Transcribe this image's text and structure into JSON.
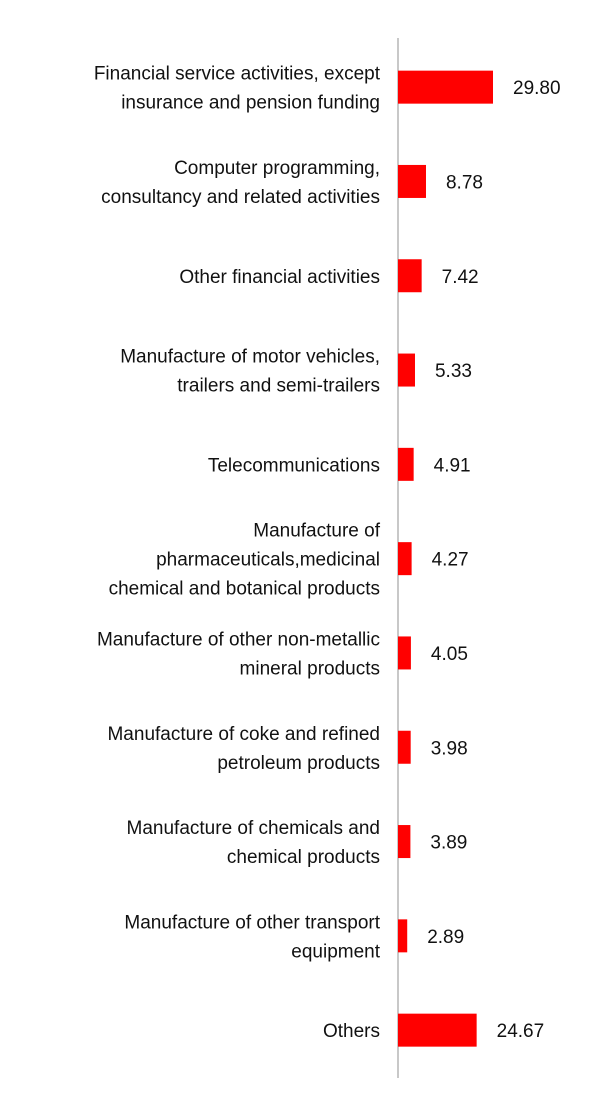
{
  "chart_data": {
    "type": "bar",
    "orientation": "horizontal",
    "title": "",
    "xlabel": "",
    "ylabel": "",
    "categories": [
      [
        "Financial service activities, except",
        "insurance and pension funding"
      ],
      [
        "Computer programming,",
        "consultancy and related activities"
      ],
      [
        "Other financial activities"
      ],
      [
        "Manufacture of motor vehicles,",
        "trailers and semi-trailers"
      ],
      [
        "Telecommunications"
      ],
      [
        "Manufacture of",
        "pharmaceuticals,medicinal",
        "chemical and botanical products"
      ],
      [
        "Manufacture of other non-metallic",
        "mineral products"
      ],
      [
        "Manufacture of coke and refined",
        "petroleum products"
      ],
      [
        "Manufacture of chemicals and",
        "chemical products"
      ],
      [
        "Manufacture of other transport",
        "equipment"
      ],
      [
        "Others"
      ]
    ],
    "values": [
      29.8,
      8.78,
      7.42,
      5.33,
      4.91,
      4.27,
      4.05,
      3.98,
      3.89,
      2.89,
      24.67
    ],
    "value_labels": [
      "29.80",
      "8.78",
      "7.42",
      "5.33",
      "4.91",
      "4.27",
      "4.05",
      "3.98",
      "3.89",
      "2.89",
      "24.67"
    ],
    "xlim": [
      0,
      30
    ],
    "grid": false,
    "legend": "none",
    "bar_color": "#ff0000",
    "axis_color": "#c8c8c8"
  }
}
